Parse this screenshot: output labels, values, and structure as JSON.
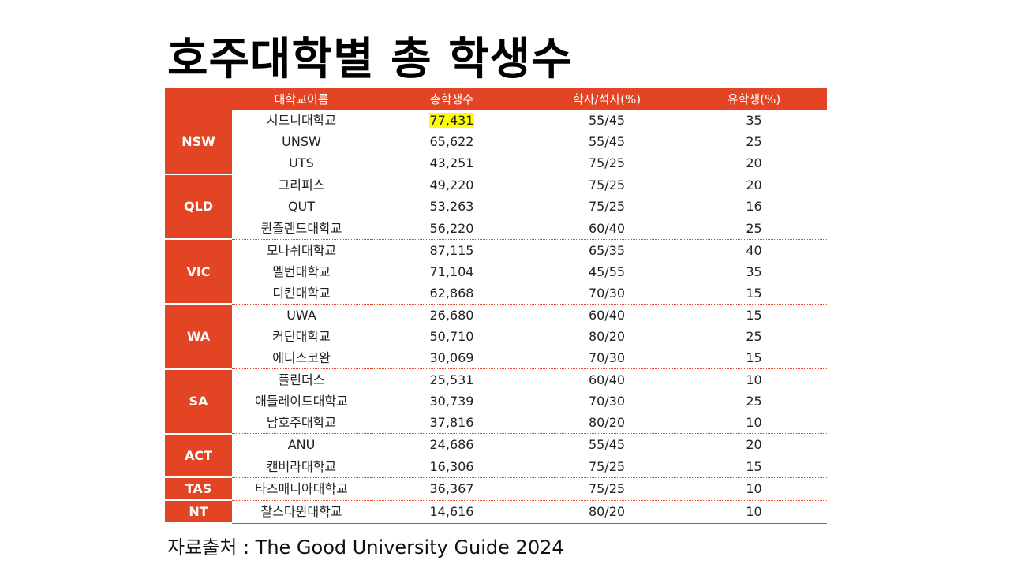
{
  "title": "호주대학별 총 학생수",
  "table": {
    "headers": [
      "",
      "대학교이름",
      "총학생수",
      "학사/석사(%)",
      "유학생(%)"
    ],
    "groups": [
      {
        "state": "NSW",
        "rows": [
          {
            "name": "시드니대학교",
            "total": "77,431",
            "ratio": "55/45",
            "intl": "35",
            "highlight": true
          },
          {
            "name": "UNSW",
            "total": "65,622",
            "ratio": "55/45",
            "intl": "25"
          },
          {
            "name": "UTS",
            "total": "43,251",
            "ratio": "75/25",
            "intl": "20"
          }
        ]
      },
      {
        "state": "QLD",
        "rows": [
          {
            "name": "그리피스",
            "total": "49,220",
            "ratio": "75/25",
            "intl": "20"
          },
          {
            "name": "QUT",
            "total": "53,263",
            "ratio": "75/25",
            "intl": "16"
          },
          {
            "name": "퀸즐랜드대학교",
            "total": "56,220",
            "ratio": "60/40",
            "intl": "25"
          }
        ]
      },
      {
        "state": "VIC",
        "rows": [
          {
            "name": "모나쉬대학교",
            "total": "87,115",
            "ratio": "65/35",
            "intl": "40"
          },
          {
            "name": "멜번대학교",
            "total": "71,104",
            "ratio": "45/55",
            "intl": "35"
          },
          {
            "name": "디킨대학교",
            "total": "62,868",
            "ratio": "70/30",
            "intl": "15"
          }
        ]
      },
      {
        "state": "WA",
        "rows": [
          {
            "name": "UWA",
            "total": "26,680",
            "ratio": "60/40",
            "intl": "15"
          },
          {
            "name": "커틴대학교",
            "total": "50,710",
            "ratio": "80/20",
            "intl": "25"
          },
          {
            "name": "에디스코완",
            "total": "30,069",
            "ratio": "70/30",
            "intl": "15"
          }
        ]
      },
      {
        "state": "SA",
        "rows": [
          {
            "name": "플린더스",
            "total": "25,531",
            "ratio": "60/40",
            "intl": "10"
          },
          {
            "name": "애들레이드대학교",
            "total": "30,739",
            "ratio": "70/30",
            "intl": "25"
          },
          {
            "name": "남호주대학교",
            "total": "37,816",
            "ratio": "80/20",
            "intl": "10"
          }
        ]
      },
      {
        "state": "ACT",
        "rows": [
          {
            "name": "ANU",
            "total": "24,686",
            "ratio": "55/45",
            "intl": "20"
          },
          {
            "name": "캔버라대학교",
            "total": "16,306",
            "ratio": "75/25",
            "intl": "15"
          }
        ]
      },
      {
        "state": "TAS",
        "rows": [
          {
            "name": "타즈매니아대학교",
            "total": "36,367",
            "ratio": "75/25",
            "intl": "10"
          }
        ]
      },
      {
        "state": "NT",
        "rows": [
          {
            "name": "찰스다윈대학교",
            "total": "14,616",
            "ratio": "80/20",
            "intl": "10"
          }
        ]
      }
    ]
  },
  "source": "자료출처 : The Good University Guide 2024",
  "colors": {
    "accent": "#e34524",
    "highlight": "#ffff00"
  }
}
